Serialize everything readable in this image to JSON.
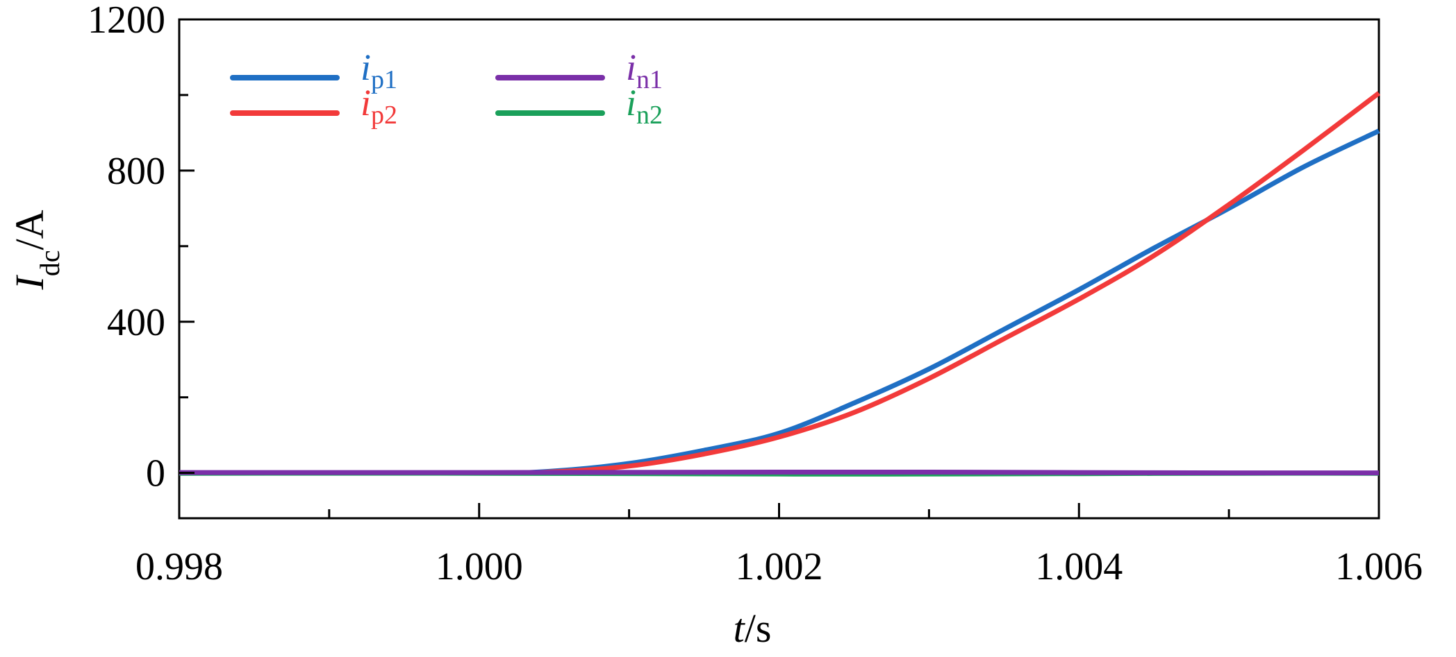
{
  "chart_data": {
    "type": "line",
    "title": "",
    "xlabel": {
      "main": "t",
      "rest": "/s"
    },
    "ylabel": {
      "main": "I",
      "sub": "dc",
      "rest": "/A"
    },
    "xlim": [
      0.998,
      1.006
    ],
    "ylim": [
      -120,
      1200
    ],
    "x_ticks": [
      0.998,
      1.0,
      1.002,
      1.004,
      1.006
    ],
    "x_tick_labels": [
      "0.998",
      "1.000",
      "1.002",
      "1.004",
      "1.006"
    ],
    "x_minor_ticks": [
      0.999,
      1.001,
      1.003,
      1.005
    ],
    "y_ticks": [
      0,
      400,
      800,
      1200
    ],
    "y_tick_labels": [
      "0",
      "400",
      "800",
      "1200"
    ],
    "y_minor_ticks": [
      200,
      600,
      1000
    ],
    "grid": false,
    "legend_position": "top-left",
    "series": [
      {
        "name": "ip1",
        "label_main": "i",
        "label_sub": "p1",
        "color": "#1f6fc4",
        "x": [
          0.998,
          1.0,
          1.0005,
          1.001,
          1.0015,
          1.002,
          1.0025,
          1.003,
          1.0035,
          1.004,
          1.0045,
          1.005,
          1.0055,
          1.006
        ],
        "y": [
          0,
          0,
          5,
          25,
          60,
          105,
          185,
          275,
          380,
          485,
          595,
          700,
          810,
          905
        ]
      },
      {
        "name": "ip2",
        "label_main": "i",
        "label_sub": "p2",
        "color": "#f23a3a",
        "x": [
          0.998,
          1.0,
          1.0005,
          1.001,
          1.0015,
          1.002,
          1.0025,
          1.003,
          1.0035,
          1.004,
          1.0045,
          1.005,
          1.0055,
          1.006
        ],
        "y": [
          0,
          0,
          3,
          18,
          50,
          95,
          160,
          250,
          355,
          460,
          575,
          710,
          855,
          1005
        ]
      },
      {
        "name": "in2",
        "label_main": "i",
        "label_sub": "n2",
        "color": "#1aa05a",
        "x": [
          0.998,
          1.0,
          1.002,
          1.003,
          1.004,
          1.005,
          1.006
        ],
        "y": [
          -1,
          -1,
          -3,
          -3,
          -2,
          -1,
          -1
        ]
      },
      {
        "name": "in1",
        "label_main": "i",
        "label_sub": "n1",
        "color": "#7a2fa8",
        "x": [
          0.998,
          1.0,
          1.002,
          1.003,
          1.004,
          1.005,
          1.006
        ],
        "y": [
          1,
          1,
          2,
          2,
          1,
          0,
          0
        ]
      }
    ],
    "legend": [
      {
        "series": "ip1",
        "column": 0,
        "row": 0
      },
      {
        "series": "ip2",
        "column": 0,
        "row": 1
      },
      {
        "series": "in1",
        "column": 1,
        "row": 0
      },
      {
        "series": "in2",
        "column": 1,
        "row": 1
      }
    ]
  }
}
